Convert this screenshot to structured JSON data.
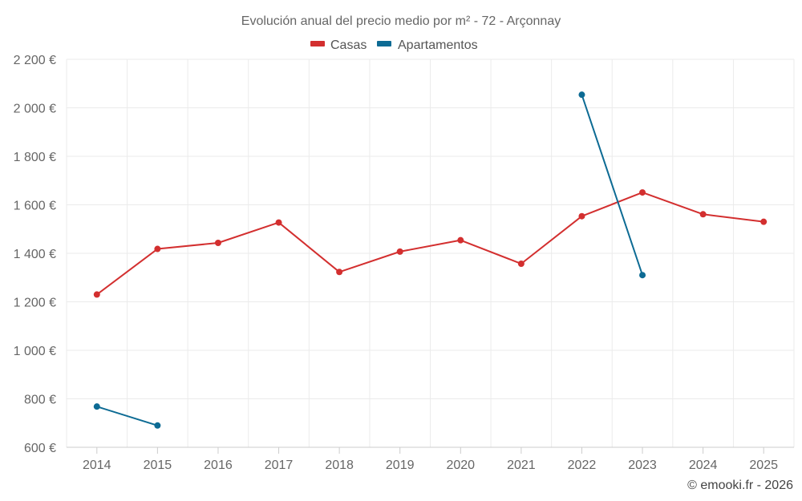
{
  "chart_data": {
    "type": "line",
    "title": "Evolución anual del precio medio por m² - 72 - Arçonnay",
    "x": [
      "2014",
      "2015",
      "2016",
      "2017",
      "2018",
      "2019",
      "2020",
      "2021",
      "2022",
      "2023",
      "2024",
      "2025"
    ],
    "yticks": [
      600,
      800,
      1000,
      1200,
      1400,
      1600,
      1800,
      2000,
      2200
    ],
    "ytick_labels": [
      "600 €",
      "800 €",
      "1 000 €",
      "1 200 €",
      "1 400 €",
      "1 600 €",
      "1 800 €",
      "2 000 €",
      "2 200 €"
    ],
    "ylim": [
      600,
      2200
    ],
    "grid": true,
    "legend_position": "top-center",
    "series": [
      {
        "name": "Casas",
        "color": "#d32f2f",
        "values": [
          1230,
          1418,
          1443,
          1527,
          1323,
          1407,
          1454,
          1357,
          1553,
          1651,
          1561,
          1530
        ]
      },
      {
        "name": "Apartamentos",
        "color": "#0d6b94",
        "values": [
          768,
          690,
          null,
          null,
          null,
          null,
          null,
          null,
          2054,
          1310,
          null,
          null
        ]
      }
    ],
    "credit": "© emooki.fr - 2026"
  }
}
